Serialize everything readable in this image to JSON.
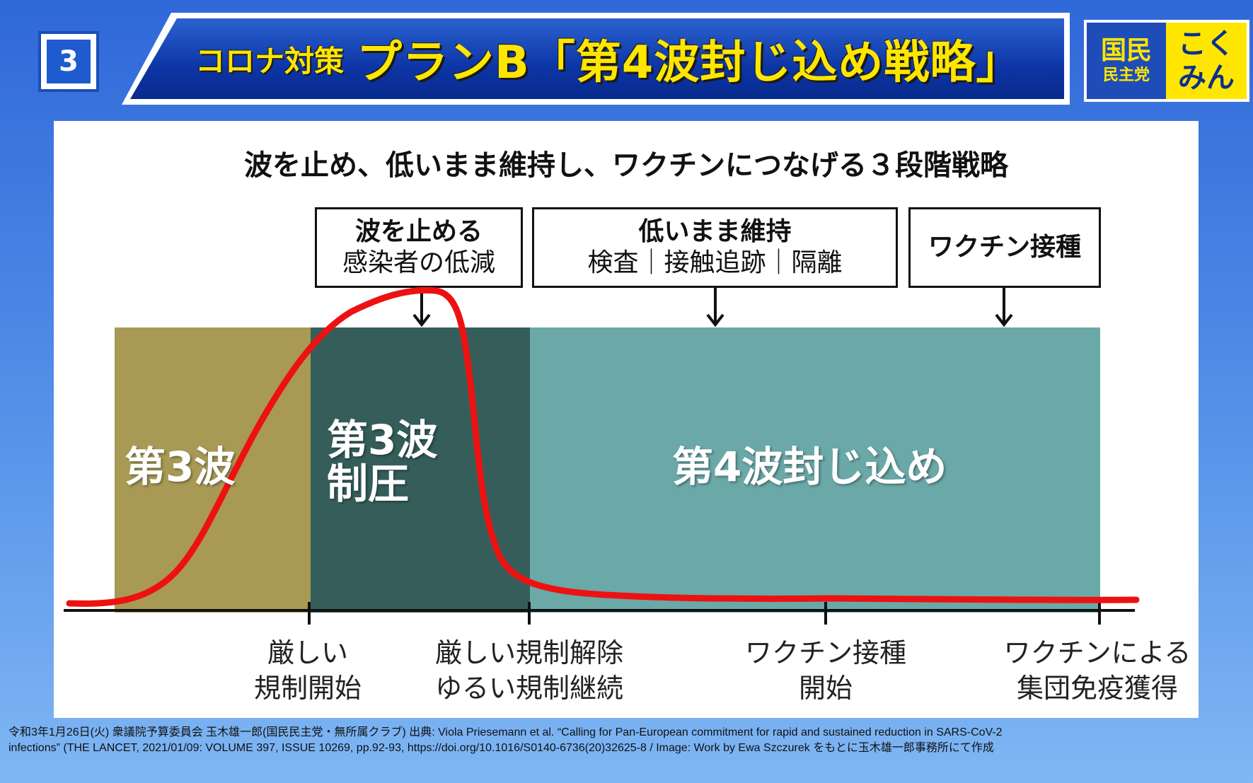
{
  "header": {
    "slide_number": "3",
    "title_prefix": "コロナ対策",
    "title_main": "プランB「第4波封じ込め戦略」",
    "logo": {
      "line1": "国民",
      "line2": "民主党",
      "right1": "こく",
      "right2": "みん"
    }
  },
  "diagram": {
    "subtitle": "波を止め、低いまま維持し、ワクチンにつなげる３段階戦略",
    "callouts": [
      {
        "title": "波を止める",
        "sub": "感染者の低減"
      },
      {
        "title": "低いまま維持",
        "sub": "検査｜接触追跡｜隔離"
      },
      {
        "title": "ワクチン接種",
        "sub": ""
      }
    ],
    "zones": [
      {
        "label": "第3波",
        "color": "#a89a55"
      },
      {
        "label_line1": "第3波",
        "label_line2": "制圧",
        "color": "#355e5b"
      },
      {
        "label": "第4波封じ込め",
        "color": "#6ba8a8"
      }
    ],
    "curve_color": "#ee1111",
    "ticks": [
      {
        "line1": "厳しい",
        "line2": "規制開始"
      },
      {
        "line1": "厳しい規制解除",
        "line2": "ゆるい規制継続"
      },
      {
        "line1": "ワクチン接種",
        "line2": "開始"
      },
      {
        "line1": "ワクチンによる",
        "line2": "集団免疫獲得"
      }
    ]
  },
  "footnote": {
    "line1": "令和3年1月26日(火) 衆議院予算委員会 玉木雄一郎(国民民主党・無所属クラブ) 出典: Viola Priesemann et al. “Calling for Pan-European commitment for rapid and sustained reduction in SARS-CoV-2",
    "line2": "infections” (THE LANCET, 2021/01/09: VOLUME 397, ISSUE 10269, pp.92-93, https://doi.org/10.1016/S0140-6736(20)32625-8 / Image: Work by Ewa Szczurek をもとに玉木雄一郎事務所にて作成"
  }
}
